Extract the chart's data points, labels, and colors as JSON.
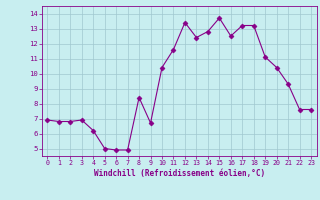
{
  "x": [
    0,
    1,
    2,
    3,
    4,
    5,
    6,
    7,
    8,
    9,
    10,
    11,
    12,
    13,
    14,
    15,
    16,
    17,
    18,
    19,
    20,
    21,
    22,
    23
  ],
  "y": [
    6.9,
    6.8,
    6.8,
    6.9,
    6.2,
    5.0,
    4.9,
    4.9,
    8.4,
    6.7,
    10.4,
    11.6,
    13.4,
    12.4,
    12.8,
    13.7,
    12.5,
    13.2,
    13.2,
    11.1,
    10.4,
    9.3,
    7.6,
    7.6
  ],
  "line_color": "#880088",
  "marker": "D",
  "marker_size": 2.5,
  "bg_color": "#c8eef0",
  "grid_color": "#a0c8d0",
  "xlabel": "Windchill (Refroidissement éolien,°C)",
  "xlabel_color": "#880088",
  "tick_color": "#880088",
  "ylim": [
    4.5,
    14.5
  ],
  "xlim": [
    -0.5,
    23.5
  ],
  "yticks": [
    5,
    6,
    7,
    8,
    9,
    10,
    11,
    12,
    13,
    14
  ],
  "xticks": [
    0,
    1,
    2,
    3,
    4,
    5,
    6,
    7,
    8,
    9,
    10,
    11,
    12,
    13,
    14,
    15,
    16,
    17,
    18,
    19,
    20,
    21,
    22,
    23
  ]
}
